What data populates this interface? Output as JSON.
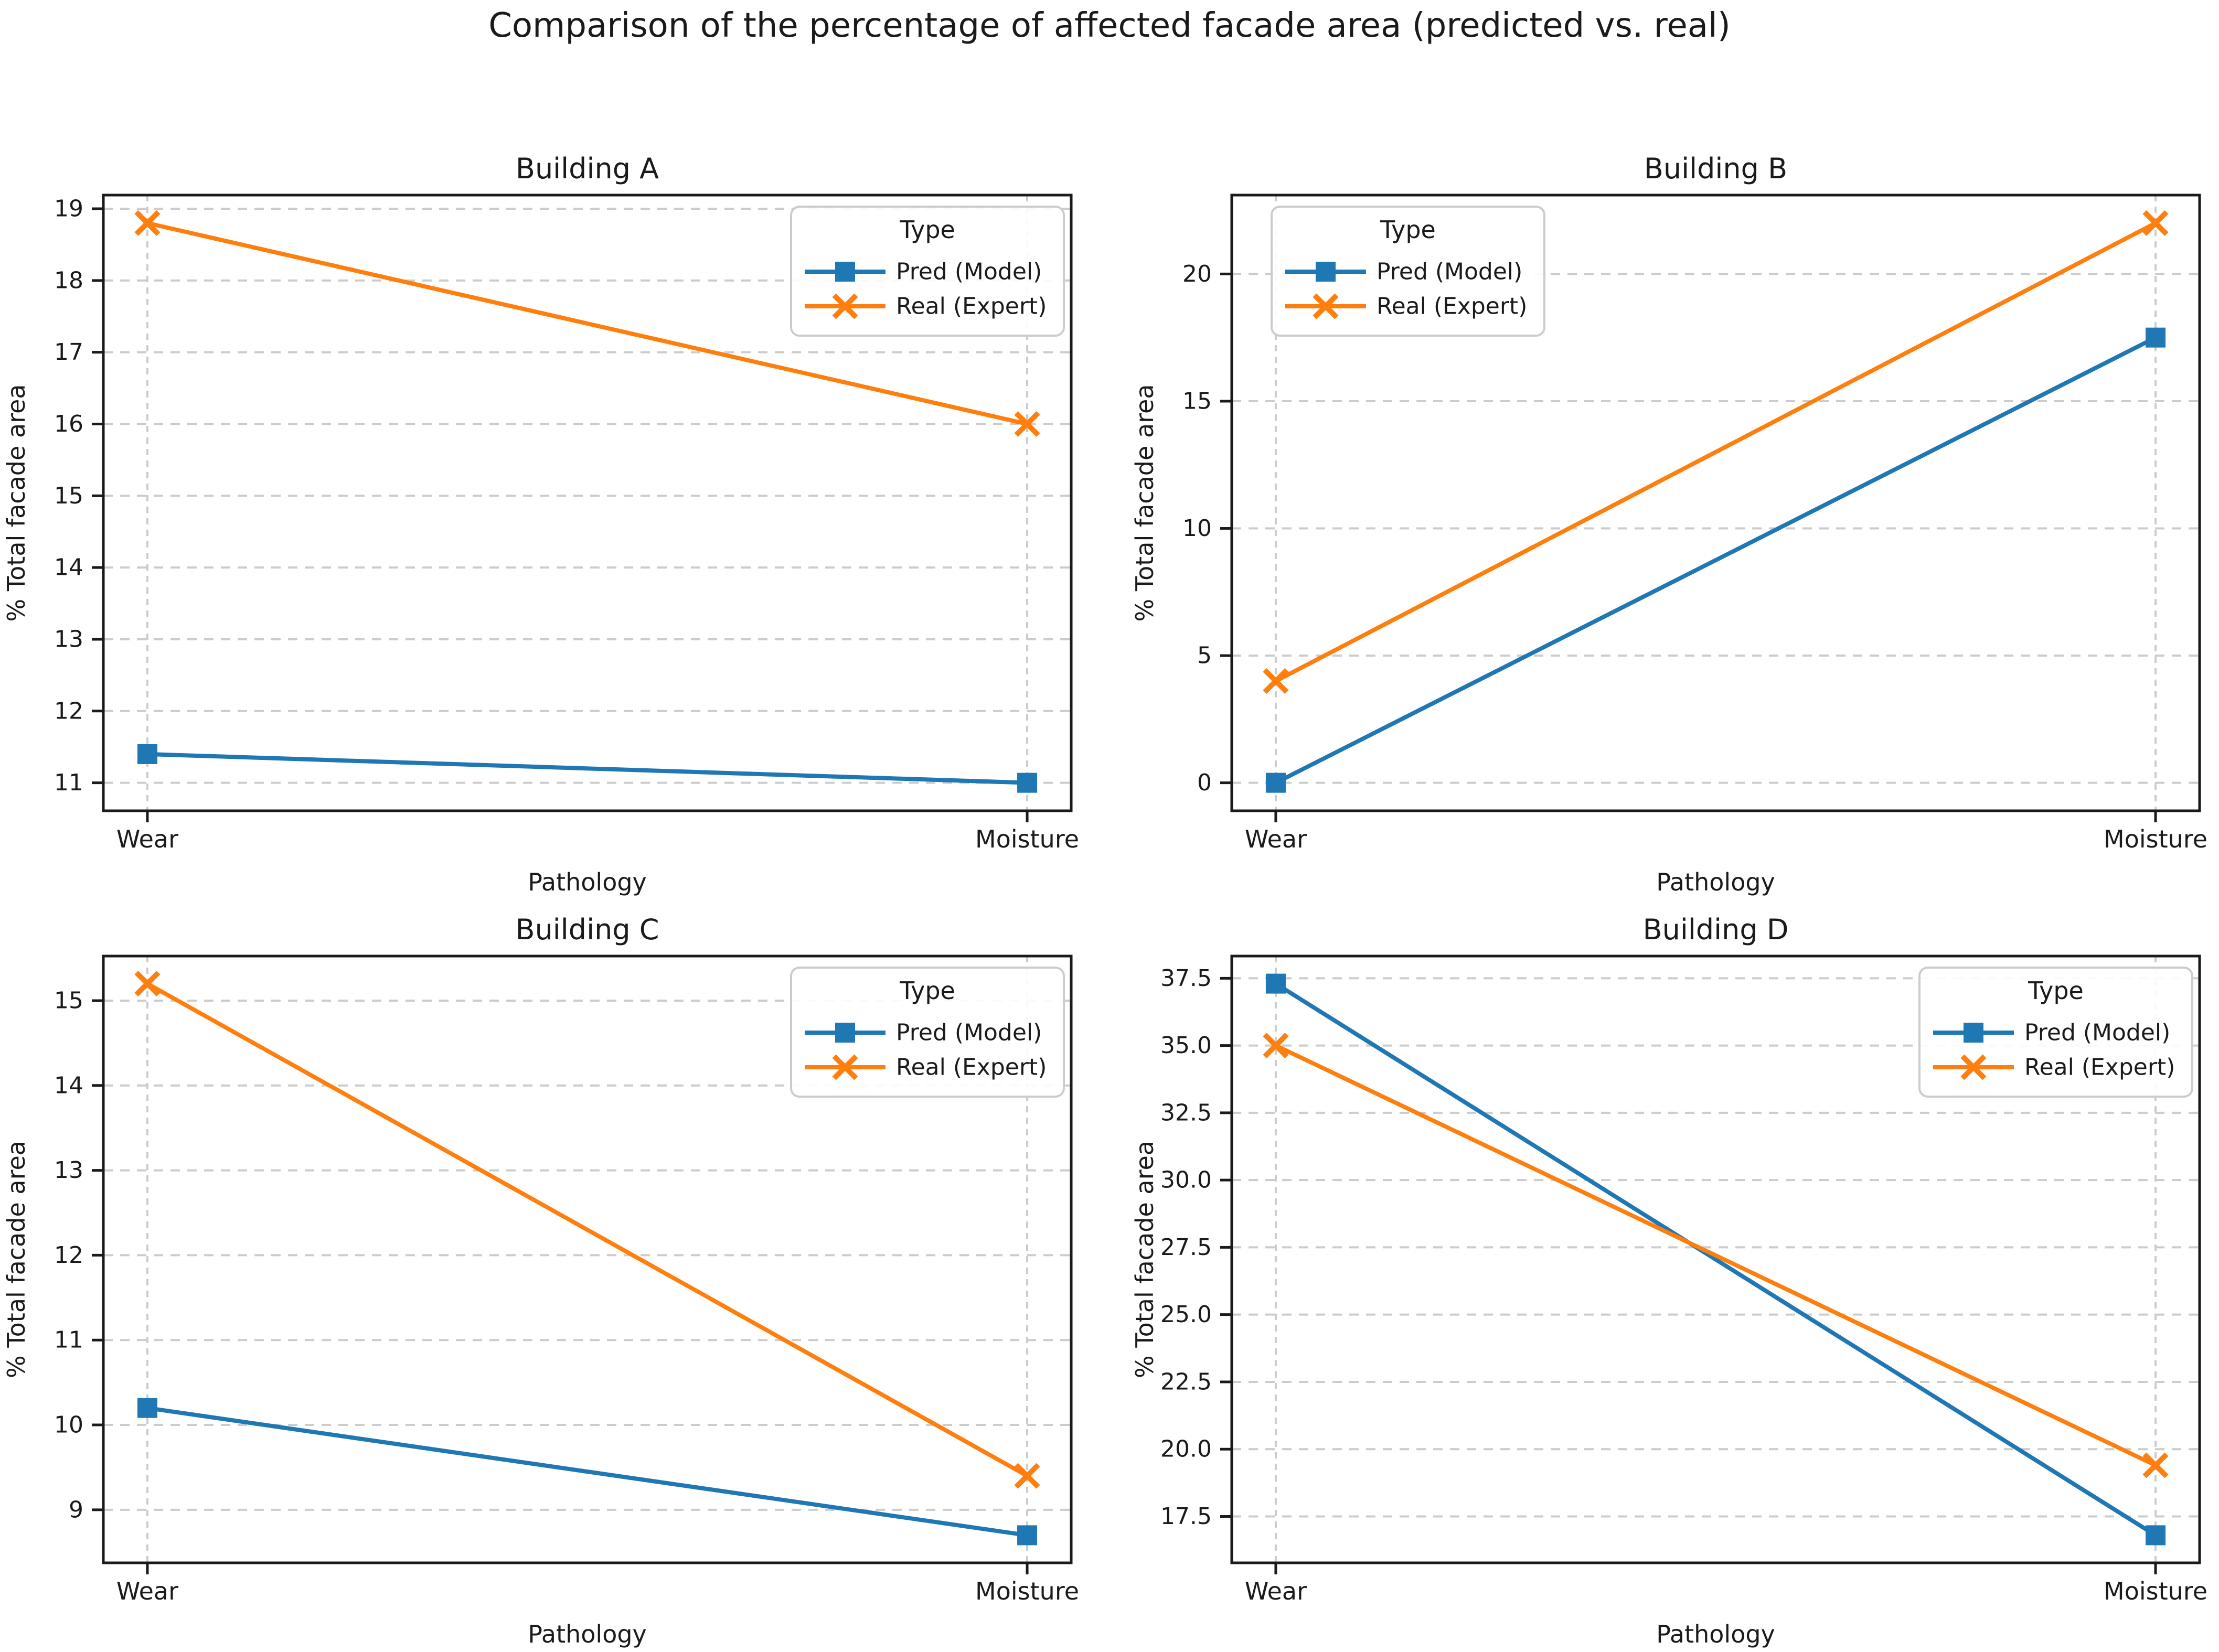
{
  "suptitle": "Comparison of the percentage of affected facade area (predicted vs. real)",
  "colors": {
    "pred": "#1f77b4",
    "real": "#ff7f0e",
    "grid": "#cccccc",
    "spine": "#1a1a1a",
    "text": "#1a1a1a",
    "legend_border": "#cccccc"
  },
  "legend": {
    "title": "Type",
    "entries": [
      {
        "label": "Pred (Model)",
        "series": "pred",
        "marker": "square"
      },
      {
        "label": "Real (Expert)",
        "series": "real",
        "marker": "x"
      }
    ]
  },
  "chart_data": [
    {
      "type": "line",
      "title": "Building A",
      "xlabel": "Pathology",
      "ylabel": "% Total facade area",
      "categories": [
        "Wear",
        "Moisture"
      ],
      "series": [
        {
          "name": "Pred (Model)",
          "color_key": "pred",
          "marker": "square",
          "values": [
            11.4,
            11.0
          ]
        },
        {
          "name": "Real (Expert)",
          "color_key": "real",
          "marker": "x",
          "values": [
            18.8,
            16.0
          ]
        }
      ],
      "ylim": [
        10.61,
        19.19
      ],
      "yticks": {
        "values": [
          11,
          12,
          13,
          14,
          15,
          16,
          17,
          18,
          19
        ],
        "labels": [
          "11",
          "12",
          "13",
          "14",
          "15",
          "16",
          "17",
          "18",
          "19"
        ]
      },
      "legend_position": "upper-right",
      "grid": true
    },
    {
      "type": "line",
      "title": "Building B",
      "xlabel": "Pathology",
      "ylabel": "% Total facade area",
      "categories": [
        "Wear",
        "Moisture"
      ],
      "series": [
        {
          "name": "Pred (Model)",
          "color_key": "pred",
          "marker": "square",
          "values": [
            0.0,
            17.5
          ]
        },
        {
          "name": "Real (Expert)",
          "color_key": "real",
          "marker": "x",
          "values": [
            4.0,
            22.0
          ]
        }
      ],
      "ylim": [
        -1.1,
        23.1
      ],
      "yticks": {
        "values": [
          0,
          5,
          10,
          15,
          20
        ],
        "labels": [
          "0",
          "5",
          "10",
          "15",
          "20"
        ]
      },
      "legend_position": "upper-left",
      "grid": true
    },
    {
      "type": "line",
      "title": "Building C",
      "xlabel": "Pathology",
      "ylabel": "% Total facade area",
      "categories": [
        "Wear",
        "Moisture"
      ],
      "series": [
        {
          "name": "Pred (Model)",
          "color_key": "pred",
          "marker": "square",
          "values": [
            10.2,
            8.7
          ]
        },
        {
          "name": "Real (Expert)",
          "color_key": "real",
          "marker": "x",
          "values": [
            15.2,
            9.4
          ]
        }
      ],
      "ylim": [
        8.375,
        15.525
      ],
      "yticks": {
        "values": [
          9,
          10,
          11,
          12,
          13,
          14,
          15
        ],
        "labels": [
          "9",
          "10",
          "11",
          "12",
          "13",
          "14",
          "15"
        ]
      },
      "legend_position": "upper-right",
      "grid": true
    },
    {
      "type": "line",
      "title": "Building D",
      "xlabel": "Pathology",
      "ylabel": "% Total facade area",
      "categories": [
        "Wear",
        "Moisture"
      ],
      "series": [
        {
          "name": "Pred (Model)",
          "color_key": "pred",
          "marker": "square",
          "values": [
            37.3,
            16.8
          ]
        },
        {
          "name": "Real (Expert)",
          "color_key": "real",
          "marker": "x",
          "values": [
            35.0,
            19.4
          ]
        }
      ],
      "ylim": [
        15.775,
        38.325
      ],
      "yticks": {
        "values": [
          17.5,
          20,
          22.5,
          25,
          27.5,
          30,
          32.5,
          35,
          37.5
        ],
        "labels": [
          "17.5",
          "20.0",
          "22.5",
          "25.0",
          "27.5",
          "30.0",
          "32.5",
          "35.0",
          "37.5"
        ]
      },
      "legend_position": "upper-right",
      "grid": true
    }
  ]
}
